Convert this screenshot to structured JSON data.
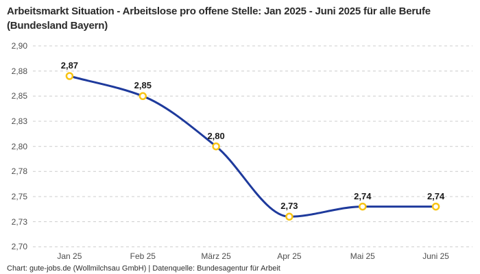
{
  "footer": {
    "credit": "Chart: gute-jobs.de (Wollmilchsau GmbH) | Datenquelle: Bundesagentur für Arbeit"
  },
  "chart_data": {
    "type": "line",
    "title": "Arbeitsmarkt Situation - Arbeitslose pro offene Stelle: Jan 2025 - Juni 2025 für alle Berufe (Bundesland Bayern)",
    "categories": [
      "Jan 25",
      "Feb 25",
      "März 25",
      "Apr 25",
      "Mai 25",
      "Juni 25"
    ],
    "values": [
      2.87,
      2.85,
      2.8,
      2.73,
      2.74,
      2.74
    ],
    "point_labels": [
      "2,87",
      "2,85",
      "2,80",
      "2,73",
      "2,74",
      "2,74"
    ],
    "y_ticks": [
      {
        "label": "2,90",
        "value": 2.9
      },
      {
        "label": "2,88",
        "value": 2.875
      },
      {
        "label": "2,85",
        "value": 2.85
      },
      {
        "label": "2,83",
        "value": 2.825
      },
      {
        "label": "2,80",
        "value": 2.8
      },
      {
        "label": "2,78",
        "value": 2.775
      },
      {
        "label": "2,75",
        "value": 2.75
      },
      {
        "label": "2,73",
        "value": 2.725
      },
      {
        "label": "2,70",
        "value": 2.7
      }
    ],
    "ylim": [
      2.7,
      2.9
    ],
    "xlabel": "",
    "ylabel": "",
    "legend": "none",
    "grid": "horizontal-dashed",
    "curve": "smooth-monotone",
    "line_color": "#1e3a9c",
    "marker_ring_color": "#f8c414",
    "marker_fill_color": "#ffffff",
    "grid_color": "#cccccc"
  }
}
